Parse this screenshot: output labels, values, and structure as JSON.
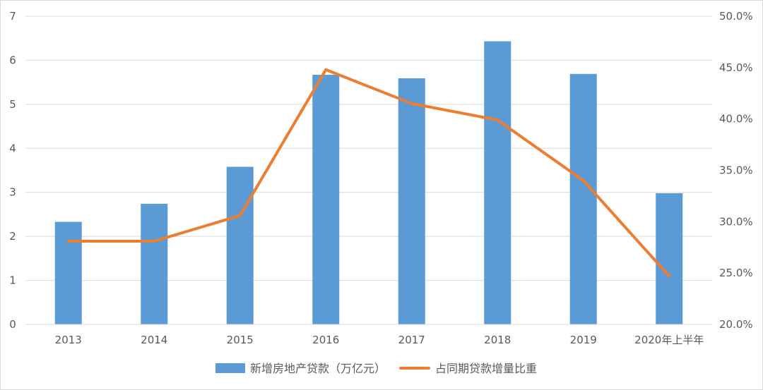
{
  "chart_data": {
    "type": "bar",
    "categories": [
      "2013",
      "2014",
      "2015",
      "2016",
      "2017",
      "2018",
      "2019",
      "2020年上半年"
    ],
    "series": [
      {
        "name": "新增房地产贷款（万亿元）",
        "type": "bar",
        "axis": "left",
        "color": "#5B9BD5",
        "values": [
          2.33,
          2.74,
          3.58,
          5.67,
          5.59,
          6.43,
          5.69,
          2.98
        ]
      },
      {
        "name": "占同期贷款增量比重",
        "type": "line",
        "axis": "right",
        "color": "#ED7D31",
        "values": [
          28.1,
          28.1,
          30.6,
          44.8,
          41.5,
          39.9,
          34.0,
          24.7
        ]
      }
    ],
    "left_axis": {
      "ylim": [
        0,
        7
      ],
      "ticks": [
        "0",
        "1",
        "2",
        "3",
        "4",
        "5",
        "6",
        "7"
      ]
    },
    "right_axis": {
      "ylim": [
        20,
        50
      ],
      "ticks": [
        "20.0%",
        "25.0%",
        "30.0%",
        "35.0%",
        "40.0%",
        "45.0%",
        "50.0%"
      ]
    },
    "grid": true,
    "legend": "bottom"
  }
}
